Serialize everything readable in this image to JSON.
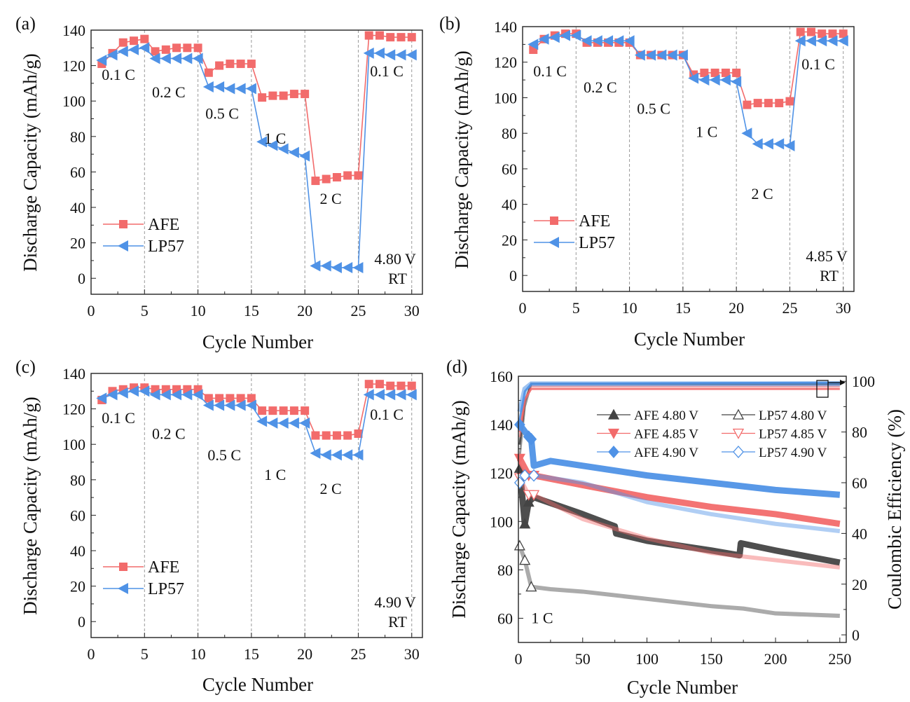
{
  "colors": {
    "afe": "#f26b6b",
    "lp57": "#4f92e6",
    "dark": "#444444",
    "red_light": "#f08a8a",
    "blue_light": "#8fbaf0"
  },
  "chart_data": [
    {
      "type": "line",
      "panel": "(a)",
      "xlabel": "Cycle Number",
      "ylabel": "Discharge Capacity (mAh/g)",
      "xlim": [
        0,
        31
      ],
      "ylim": [
        -9,
        140
      ],
      "xticks": [
        0,
        5,
        10,
        15,
        20,
        25,
        30
      ],
      "yticks": [
        0,
        20,
        40,
        60,
        80,
        100,
        120,
        140
      ],
      "grid": "dashed vertical lines every 5 cycles",
      "legend_position": "bottom-left",
      "series": [
        {
          "name": "AFE",
          "marker": "square",
          "values": [
            121,
            127,
            133,
            134,
            135,
            128,
            129,
            130,
            130,
            130,
            116,
            120,
            121,
            121,
            121,
            102,
            103,
            103,
            104,
            104,
            55,
            56,
            57,
            58,
            58,
            137,
            137,
            136,
            136,
            136
          ]
        },
        {
          "name": "LP57",
          "marker": "left-triangle",
          "values": [
            123,
            126,
            128,
            129,
            130,
            124,
            124,
            124,
            124,
            124,
            108,
            108,
            107,
            107,
            107,
            77,
            75,
            73,
            71,
            69,
            7,
            7,
            6,
            6,
            6,
            127,
            127,
            126,
            126,
            126
          ]
        }
      ],
      "annotations": [
        {
          "text": "0.1 C",
          "x": 1,
          "y": 112
        },
        {
          "text": "0.2 C",
          "x": 5.7,
          "y": 102
        },
        {
          "text": "0.5 C",
          "x": 10.7,
          "y": 90
        },
        {
          "text": "1 C",
          "x": 16.2,
          "y": 76
        },
        {
          "text": "2 C",
          "x": 21.4,
          "y": 42
        },
        {
          "text": "0.1 C",
          "x": 26.1,
          "y": 114
        },
        {
          "text": "4.80 V",
          "x": 26.5,
          "y": 8
        },
        {
          "text": "RT",
          "x": 27.8,
          "y": -3
        }
      ]
    },
    {
      "type": "line",
      "panel": "(b)",
      "xlabel": "Cycle Number",
      "ylabel": "Discharge Capacity (mAh/g)",
      "xlim": [
        0,
        31
      ],
      "ylim": [
        -9,
        140
      ],
      "xticks": [
        0,
        5,
        10,
        15,
        20,
        25,
        30
      ],
      "yticks": [
        0,
        20,
        40,
        60,
        80,
        100,
        120,
        140
      ],
      "grid": "dashed vertical lines every 5 cycles",
      "legend_position": "bottom-left",
      "series": [
        {
          "name": "AFE",
          "marker": "square",
          "values": [
            127,
            133,
            135,
            136,
            136,
            131,
            131,
            131,
            131,
            131,
            124,
            124,
            124,
            124,
            124,
            113,
            114,
            114,
            114,
            114,
            96,
            97,
            97,
            97,
            98,
            137,
            137,
            136,
            136,
            136
          ]
        },
        {
          "name": "LP57",
          "marker": "left-triangle",
          "values": [
            130,
            133,
            134,
            135,
            135,
            132,
            132,
            132,
            132,
            132,
            124,
            124,
            124,
            124,
            124,
            111,
            110,
            110,
            110,
            109,
            80,
            74,
            74,
            74,
            73,
            132,
            132,
            132,
            132,
            132
          ]
        }
      ],
      "annotations": [
        {
          "text": "0.1 C",
          "x": 1,
          "y": 112
        },
        {
          "text": "0.2 C",
          "x": 5.7,
          "y": 103
        },
        {
          "text": "0.5 C",
          "x": 10.7,
          "y": 91
        },
        {
          "text": "1 C",
          "x": 16.2,
          "y": 78
        },
        {
          "text": "2 C",
          "x": 21.4,
          "y": 43
        },
        {
          "text": "0.1 C",
          "x": 26.1,
          "y": 116
        },
        {
          "text": "4.85 V",
          "x": 26.5,
          "y": 8
        },
        {
          "text": "RT",
          "x": 27.8,
          "y": -3
        }
      ]
    },
    {
      "type": "line",
      "panel": "(c)",
      "xlabel": "Cycle Number",
      "ylabel": "Discharge Capacity (mAh/g)",
      "xlim": [
        0,
        31
      ],
      "ylim": [
        -9,
        140
      ],
      "xticks": [
        0,
        5,
        10,
        15,
        20,
        25,
        30
      ],
      "yticks": [
        0,
        20,
        40,
        60,
        80,
        100,
        120,
        140
      ],
      "grid": "dashed vertical lines every 5 cycles",
      "legend_position": "bottom-left",
      "series": [
        {
          "name": "AFE",
          "marker": "square",
          "values": [
            125,
            130,
            131,
            132,
            132,
            131,
            131,
            131,
            131,
            131,
            126,
            126,
            126,
            126,
            126,
            119,
            119,
            119,
            119,
            119,
            105,
            105,
            105,
            105,
            106,
            134,
            134,
            133,
            133,
            133
          ]
        },
        {
          "name": "LP57",
          "marker": "left-triangle",
          "values": [
            126,
            128,
            129,
            130,
            130,
            128,
            128,
            128,
            128,
            128,
            122,
            122,
            122,
            122,
            122,
            113,
            112,
            112,
            112,
            112,
            95,
            94,
            94,
            94,
            94,
            128,
            128,
            128,
            128,
            128
          ]
        }
      ],
      "annotations": [
        {
          "text": "0.1 C",
          "x": 1,
          "y": 112
        },
        {
          "text": "0.2 C",
          "x": 5.7,
          "y": 103
        },
        {
          "text": "0.5 C",
          "x": 10.9,
          "y": 91
        },
        {
          "text": "1 C",
          "x": 16.2,
          "y": 80
        },
        {
          "text": "2 C",
          "x": 21.4,
          "y": 72
        },
        {
          "text": "0.1 C",
          "x": 26.1,
          "y": 114
        },
        {
          "text": "4.90 V",
          "x": 26.5,
          "y": 8
        },
        {
          "text": "RT",
          "x": 27.8,
          "y": -3
        }
      ]
    },
    {
      "type": "line",
      "panel": "(d)",
      "xlabel": "Cycle Number",
      "ylabel": "Discharge Capacity (mAh/g)",
      "y2label": "Coulombic Efficiency (%)",
      "xlim": [
        0,
        255
      ],
      "ylim": [
        50,
        160
      ],
      "y2lim": [
        -3,
        102
      ],
      "xticks": [
        0,
        50,
        100,
        150,
        200,
        250
      ],
      "yticks": [
        60,
        80,
        100,
        120,
        140,
        160
      ],
      "y2ticks": [
        0,
        20,
        40,
        60,
        80,
        100
      ],
      "legend_position": "top-right",
      "annotations": [
        {
          "text": "1 C",
          "x": 10,
          "y": 58
        }
      ],
      "series": [
        {
          "name": "AFE 4.80 V",
          "marker": "filled-up-triangle",
          "color": "#444444",
          "hollow": false,
          "points": [
            [
              1,
              122
            ],
            [
              5,
              99
            ],
            [
              8,
              108
            ],
            [
              12,
              110
            ],
            [
              50,
              103
            ],
            [
              75,
              98
            ],
            [
              76,
              95
            ],
            [
              100,
              92
            ],
            [
              150,
              88
            ],
            [
              172,
              86
            ],
            [
              173,
              91
            ],
            [
              200,
              88
            ],
            [
              250,
              83
            ]
          ]
        },
        {
          "name": "LP57 4.80 V",
          "marker": "hollow-up-triangle",
          "color": "#444444",
          "hollow": true,
          "points": [
            [
              1,
              90
            ],
            [
              5,
              84
            ],
            [
              10,
              73
            ],
            [
              25,
              72
            ],
            [
              50,
              71
            ],
            [
              100,
              68
            ],
            [
              150,
              65
            ],
            [
              175,
              64
            ],
            [
              200,
              62
            ],
            [
              250,
              61
            ]
          ]
        },
        {
          "name": "AFE 4.85 V",
          "marker": "filled-down-triangle",
          "color": "#f26b6b",
          "hollow": false,
          "points": [
            [
              1,
              126
            ],
            [
              8,
              119
            ],
            [
              12,
              119
            ],
            [
              50,
              115
            ],
            [
              100,
              110
            ],
            [
              150,
              106
            ],
            [
              200,
              103
            ],
            [
              250,
              99
            ]
          ]
        },
        {
          "name": "LP57 4.85 V",
          "marker": "hollow-down-triangle",
          "color": "#f26b6b",
          "hollow": true,
          "points": [
            [
              1,
              118
            ],
            [
              8,
              111
            ],
            [
              12,
              111
            ],
            [
              50,
              101
            ],
            [
              100,
              93
            ],
            [
              150,
              87
            ],
            [
              200,
              84
            ],
            [
              250,
              81
            ]
          ]
        },
        {
          "name": "AFE 4.90 V",
          "marker": "filled-diamond",
          "color": "#4f92e6",
          "hollow": false,
          "points": [
            [
              1,
              140
            ],
            [
              8,
              135
            ],
            [
              10,
              134
            ],
            [
              12,
              123
            ],
            [
              25,
              125
            ],
            [
              50,
              123
            ],
            [
              100,
              119
            ],
            [
              150,
              116
            ],
            [
              200,
              113
            ],
            [
              250,
              111
            ]
          ]
        },
        {
          "name": "LP57 4.90 V",
          "marker": "hollow-diamond",
          "color": "#4f92e6",
          "hollow": true,
          "points": [
            [
              1,
              116
            ],
            [
              5,
              119
            ],
            [
              12,
              119
            ],
            [
              50,
              116
            ],
            [
              100,
              108
            ],
            [
              150,
              103
            ],
            [
              200,
              99
            ],
            [
              250,
              96
            ]
          ]
        }
      ],
      "ce_series": [
        {
          "name": "AFE 4.80 V",
          "points": [
            [
              1,
              75
            ],
            [
              5,
              92
            ],
            [
              10,
              99
            ],
            [
              250,
              99
            ]
          ]
        },
        {
          "name": "LP57 4.80 V",
          "points": [
            [
              1,
              70
            ],
            [
              5,
              90
            ],
            [
              10,
              99
            ],
            [
              250,
              99
            ]
          ]
        },
        {
          "name": "AFE 4.85 V",
          "points": [
            [
              1,
              80
            ],
            [
              5,
              93
            ],
            [
              10,
              97
            ],
            [
              250,
              97
            ]
          ]
        },
        {
          "name": "LP57 4.85 V",
          "points": [
            [
              1,
              78
            ],
            [
              5,
              92
            ],
            [
              10,
              98
            ],
            [
              250,
              98
            ]
          ]
        },
        {
          "name": "AFE 4.90 V",
          "points": [
            [
              1,
              85
            ],
            [
              5,
              96
            ],
            [
              10,
              99
            ],
            [
              250,
              99.5
            ]
          ]
        },
        {
          "name": "LP57 4.90 V",
          "points": [
            [
              1,
              88
            ],
            [
              5,
              97
            ],
            [
              10,
              99
            ],
            [
              250,
              99
            ]
          ]
        }
      ]
    }
  ]
}
